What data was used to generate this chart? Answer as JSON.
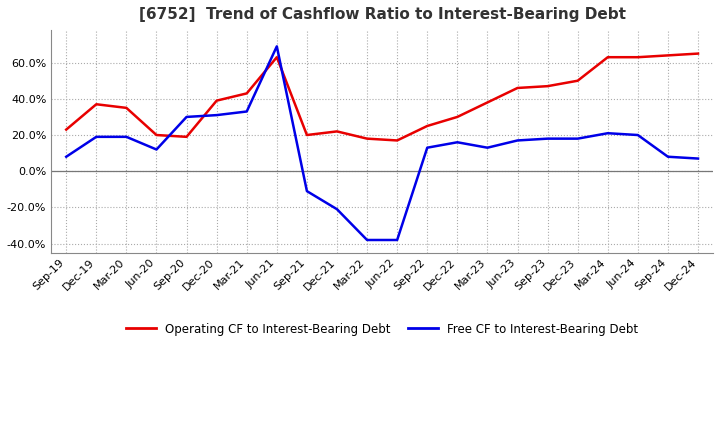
{
  "title": "[6752]  Trend of Cashflow Ratio to Interest-Bearing Debt",
  "x_labels": [
    "Sep-19",
    "Dec-19",
    "Mar-20",
    "Jun-20",
    "Sep-20",
    "Dec-20",
    "Mar-21",
    "Jun-21",
    "Sep-21",
    "Dec-21",
    "Mar-22",
    "Jun-22",
    "Sep-22",
    "Dec-22",
    "Mar-23",
    "Jun-23",
    "Sep-23",
    "Dec-23",
    "Mar-24",
    "Jun-24",
    "Sep-24",
    "Dec-24"
  ],
  "operating_cf": [
    0.23,
    0.37,
    0.35,
    0.2,
    0.19,
    0.39,
    0.43,
    0.63,
    0.2,
    0.22,
    0.18,
    0.17,
    0.25,
    0.3,
    0.38,
    0.46,
    0.47,
    0.5,
    0.63,
    0.63,
    0.64,
    0.65
  ],
  "free_cf": [
    0.08,
    0.19,
    0.19,
    0.12,
    0.3,
    0.31,
    0.33,
    0.69,
    -0.11,
    -0.21,
    -0.38,
    -0.38,
    0.13,
    0.16,
    0.13,
    0.17,
    0.18,
    0.18,
    0.21,
    0.2,
    0.08,
    0.07
  ],
  "operating_color": "#e80000",
  "free_color": "#0000e8",
  "background_color": "#ffffff",
  "plot_bg_color": "#ffffff",
  "grid_color": "#aaaaaa",
  "ylim": [
    -0.45,
    0.78
  ],
  "yticks": [
    -0.4,
    -0.2,
    0.0,
    0.2,
    0.4,
    0.6
  ],
  "title_fontsize": 11,
  "tick_fontsize": 8,
  "legend_labels": [
    "Operating CF to Interest-Bearing Debt",
    "Free CF to Interest-Bearing Debt"
  ]
}
